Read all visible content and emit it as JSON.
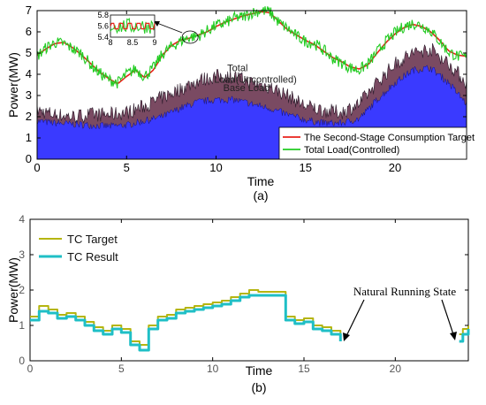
{
  "chart_data": [
    {
      "type": "area",
      "panel_label": "(a)",
      "xlabel": "Time",
      "ylabel": "Power(MW)",
      "xlim": [
        0,
        24
      ],
      "ylim": [
        0,
        7
      ],
      "xticks": [
        "0",
        "5",
        "10",
        "15",
        "20"
      ],
      "yticks": [
        "0",
        "1",
        "2",
        "3",
        "4",
        "5",
        "6",
        "7"
      ],
      "colors": {
        "base_load": "#3a3aff",
        "uncontrolled_band": "#7a4a62",
        "target": "#e8231b",
        "controlled": "#22cc22"
      },
      "annotations": {
        "base_load_label": "Base Load",
        "uncontrolled_label_line1": "Total",
        "uncontrolled_label_line2": "Load(Uncontrolled)"
      },
      "legend": [
        {
          "label": "The Second-Stage Consumption Target",
          "color": "#e8231b"
        },
        {
          "label": "Total Load(Controlled)",
          "color": "#22cc22"
        }
      ],
      "legend_position": "bottom-right",
      "series": [
        {
          "name": "The Second-Stage Consumption Target",
          "x": [
            0,
            0.5,
            1,
            1.5,
            2,
            2.5,
            3,
            3.5,
            4,
            4.5,
            5,
            5.5,
            6,
            6.5,
            7,
            7.5,
            8,
            8.5,
            9,
            9.5,
            10,
            10.5,
            11,
            11.5,
            12,
            12.5,
            13,
            13.5,
            14,
            14.5,
            15,
            15.5,
            16,
            16.5,
            17,
            17.5,
            18,
            18.5,
            19,
            19.5,
            20,
            20.5,
            21,
            21.5,
            22,
            22.5,
            23,
            23.5,
            24
          ],
          "y": [
            4.9,
            5.2,
            5.45,
            5.5,
            5.25,
            4.9,
            4.5,
            4.1,
            3.8,
            3.55,
            3.9,
            4.2,
            3.85,
            4.2,
            4.9,
            5.35,
            5.6,
            5.7,
            5.85,
            6.0,
            6.25,
            6.45,
            6.6,
            6.75,
            6.85,
            6.95,
            6.9,
            6.5,
            6.1,
            5.85,
            5.6,
            5.4,
            5.1,
            4.8,
            4.6,
            4.35,
            4.25,
            4.45,
            5.0,
            5.5,
            5.9,
            6.2,
            6.35,
            6.25,
            6.0,
            5.6,
            5.1,
            4.9,
            4.85
          ]
        },
        {
          "name": "Total Load(Controlled)",
          "x": [
            0,
            0.5,
            1,
            1.5,
            2,
            2.5,
            3,
            3.5,
            4,
            4.5,
            5,
            5.5,
            6,
            6.5,
            7,
            7.5,
            8,
            8.5,
            9,
            9.5,
            10,
            10.5,
            11,
            11.5,
            12,
            12.5,
            13,
            13.5,
            14,
            14.5,
            15,
            15.5,
            16,
            16.5,
            17,
            17.5,
            18,
            18.5,
            19,
            19.5,
            20,
            20.5,
            21,
            21.5,
            22,
            22.5,
            23,
            23.5,
            24
          ],
          "y": [
            4.85,
            5.25,
            5.5,
            5.45,
            5.2,
            4.95,
            4.45,
            4.05,
            3.75,
            3.6,
            4.0,
            4.25,
            3.9,
            4.3,
            4.95,
            5.3,
            5.55,
            5.75,
            5.8,
            6.05,
            6.3,
            6.4,
            6.65,
            6.7,
            6.9,
            7.0,
            6.95,
            6.45,
            6.15,
            5.8,
            5.55,
            5.45,
            5.15,
            4.75,
            4.55,
            4.3,
            4.2,
            4.5,
            5.05,
            5.55,
            5.95,
            6.25,
            6.4,
            6.3,
            6.05,
            5.55,
            5.05,
            4.85,
            4.8
          ]
        },
        {
          "name": "Total Load(Uncontrolled)",
          "x": [
            0,
            1,
            2,
            3,
            4,
            5,
            6,
            7,
            8,
            9,
            10,
            11,
            12,
            13,
            14,
            15,
            16,
            17,
            18,
            19,
            20,
            21,
            22,
            23,
            24
          ],
          "y": [
            2.3,
            2.1,
            2.0,
            2.1,
            2.1,
            2.2,
            2.5,
            2.9,
            3.3,
            3.7,
            3.9,
            3.9,
            3.6,
            3.4,
            3.0,
            2.5,
            2.3,
            2.2,
            2.6,
            3.6,
            4.5,
            5.0,
            5.2,
            4.5,
            3.6
          ]
        },
        {
          "name": "Base Load",
          "x": [
            0,
            1,
            2,
            3,
            4,
            5,
            6,
            7,
            8,
            9,
            10,
            11,
            12,
            13,
            14,
            15,
            16,
            17,
            18,
            19,
            20,
            21,
            22,
            23,
            24
          ],
          "y": [
            1.8,
            1.7,
            1.65,
            1.6,
            1.55,
            1.6,
            1.8,
            2.0,
            2.4,
            2.7,
            2.8,
            2.8,
            2.6,
            2.4,
            2.1,
            1.85,
            1.7,
            1.7,
            1.9,
            2.8,
            3.6,
            4.2,
            4.3,
            3.6,
            2.6
          ]
        }
      ],
      "inset": {
        "xlim": [
          8,
          9
        ],
        "ylim": [
          5.4,
          5.8
        ],
        "xticks": [
          "8",
          "8.5",
          "9"
        ],
        "yticks": [
          "5.4",
          "5.6",
          "5.8"
        ]
      }
    },
    {
      "type": "line",
      "panel_label": "(b)",
      "xlabel": "Time",
      "ylabel": "Power(MW)",
      "xlim": [
        0,
        24
      ],
      "ylim": [
        0,
        4
      ],
      "xticks": [
        "0",
        "5",
        "10",
        "15",
        "20"
      ],
      "yticks": [
        "0",
        "1",
        "2",
        "3",
        "4"
      ],
      "grid": false,
      "legend_position": "top-left",
      "annotation": "Natural Running State",
      "series": [
        {
          "name": "TC Target",
          "color": "#b5b510",
          "segments": [
            {
              "x": [
                0,
                0.5,
                1,
                1.5,
                2,
                2.5,
                3,
                3.5,
                4,
                4.5,
                5,
                5.5,
                6,
                6.5,
                7,
                7.5,
                8,
                8.5,
                9,
                9.5,
                10,
                10.5,
                11,
                11.5,
                12,
                12.5,
                13,
                13.5,
                14,
                14.5,
                15,
                15.5,
                16,
                16.5,
                17
              ],
              "y": [
                1.25,
                1.55,
                1.45,
                1.3,
                1.35,
                1.25,
                1.1,
                0.95,
                0.85,
                1.0,
                0.9,
                0.55,
                0.45,
                1.0,
                1.25,
                1.3,
                1.45,
                1.5,
                1.55,
                1.6,
                1.65,
                1.7,
                1.8,
                1.9,
                2.0,
                1.95,
                1.95,
                1.95,
                1.25,
                1.15,
                1.2,
                1.0,
                0.95,
                0.85,
                0.7
              ]
            },
            {
              "x": [
                23.5,
                23.7,
                24
              ],
              "y": [
                0.75,
                0.9,
                1.0
              ]
            }
          ]
        },
        {
          "name": "TC Result",
          "color": "#1fbfc6",
          "segments": [
            {
              "x": [
                0,
                0.5,
                1,
                1.5,
                2,
                2.5,
                3,
                3.5,
                4,
                4.5,
                5,
                5.5,
                6,
                6.5,
                7,
                7.5,
                8,
                8.5,
                9,
                9.5,
                10,
                10.5,
                11,
                11.5,
                12,
                12.5,
                13,
                13.5,
                14,
                14.5,
                15,
                15.5,
                16,
                16.5,
                17
              ],
              "y": [
                1.15,
                1.4,
                1.35,
                1.2,
                1.25,
                1.15,
                1.0,
                0.85,
                0.75,
                0.9,
                0.8,
                0.45,
                0.3,
                0.9,
                1.15,
                1.2,
                1.35,
                1.4,
                1.45,
                1.5,
                1.55,
                1.6,
                1.7,
                1.8,
                1.85,
                1.85,
                1.85,
                1.85,
                1.15,
                1.05,
                1.1,
                0.9,
                0.85,
                0.75,
                0.55
              ]
            },
            {
              "x": [
                23.5,
                23.7,
                24
              ],
              "y": [
                0.55,
                0.75,
                0.9
              ]
            }
          ]
        }
      ]
    }
  ]
}
